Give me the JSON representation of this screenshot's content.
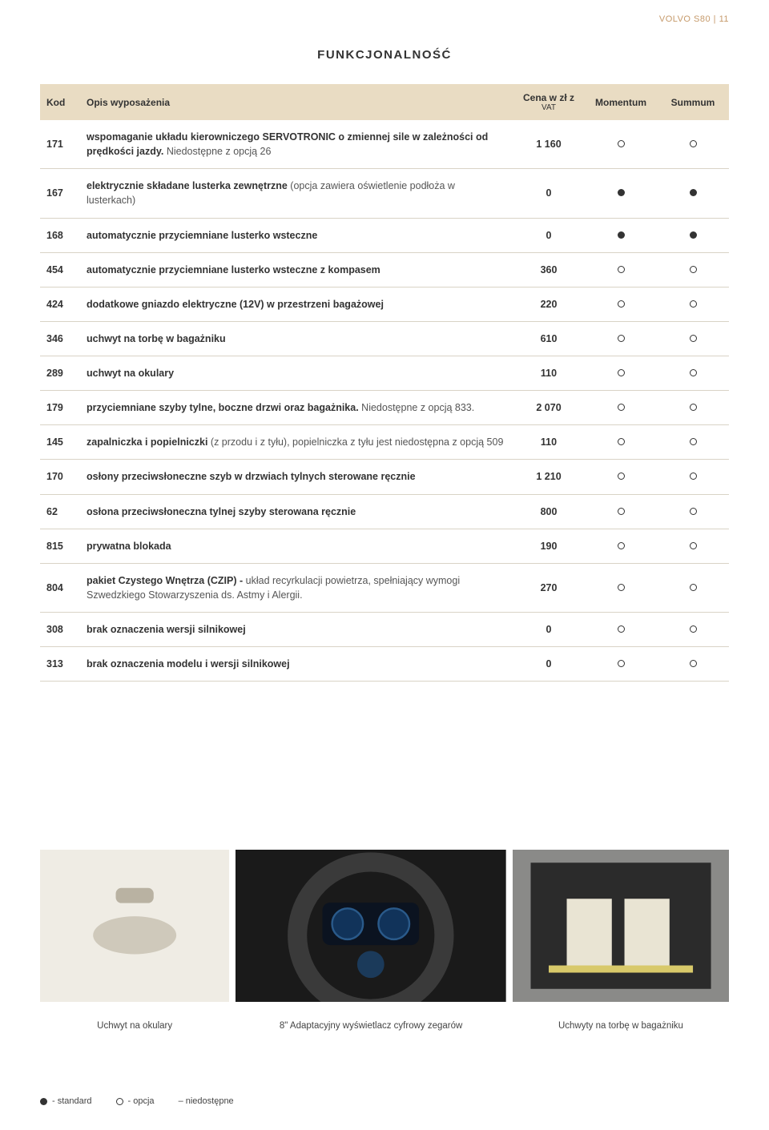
{
  "corner": "VOLVO S80 | 11",
  "section_title": "FUNKCJONALNOŚĆ",
  "table": {
    "headers": {
      "kod": "Kod",
      "opis": "Opis wyposażenia",
      "cena": "Cena w zł z",
      "cena_sub": "VAT",
      "momentum": "Momentum",
      "summum": "Summum"
    },
    "rows": [
      {
        "kod": "171",
        "desc_bold": "wspomaganie układu kierowniczego SERVOTRONIC o zmiennej sile w zależności od prędkości jazdy.",
        "desc_light": " Niedostępne z opcją 26",
        "price": "1 160",
        "m": "open",
        "s": "open"
      },
      {
        "kod": "167",
        "desc_bold": "elektrycznie składane lusterka zewnętrzne ",
        "desc_light": "(opcja zawiera oświetlenie podłoża w lusterkach)",
        "price": "0",
        "m": "filled",
        "s": "filled"
      },
      {
        "kod": "168",
        "desc_bold": "automatycznie przyciemniane lusterko wsteczne",
        "desc_light": "",
        "price": "0",
        "m": "filled",
        "s": "filled"
      },
      {
        "kod": "454",
        "desc_bold": "automatycznie przyciemniane lusterko wsteczne  z kompasem",
        "desc_light": "",
        "price": "360",
        "m": "open",
        "s": "open"
      },
      {
        "kod": "424",
        "desc_bold": "dodatkowe gniazdo elektryczne (12V) w przestrzeni bagażowej",
        "desc_light": "",
        "price": "220",
        "m": "open",
        "s": "open"
      },
      {
        "kod": "346",
        "desc_bold": "uchwyt na torbę w bagażniku",
        "desc_light": "",
        "price": "610",
        "m": "open",
        "s": "open"
      },
      {
        "kod": "289",
        "desc_bold": "uchwyt na okulary",
        "desc_light": "",
        "price": "110",
        "m": "open",
        "s": "open"
      },
      {
        "kod": "179",
        "desc_bold": "przyciemniane szyby tylne, boczne drzwi oraz bagażnika.",
        "desc_light": " Niedostępne z opcją 833.",
        "price": "2 070",
        "m": "open",
        "s": "open"
      },
      {
        "kod": "145",
        "desc_bold": "zapalniczka i popielniczki ",
        "desc_light": "(z przodu i z tyłu), popielniczka z tyłu jest niedostępna z opcją 509",
        "price": "110",
        "m": "open",
        "s": "open"
      },
      {
        "kod": "170",
        "desc_bold": "osłony przeciwsłoneczne szyb w drzwiach tylnych sterowane ręcznie",
        "desc_light": "",
        "price": "1 210",
        "m": "open",
        "s": "open"
      },
      {
        "kod": "62",
        "desc_bold": "osłona przeciwsłoneczna tylnej szyby sterowana ręcznie",
        "desc_light": "",
        "price": "800",
        "m": "open",
        "s": "open"
      },
      {
        "kod": "815",
        "desc_bold": "prywatna blokada",
        "desc_light": "",
        "price": "190",
        "m": "open",
        "s": "open"
      },
      {
        "kod": "804",
        "desc_bold": "pakiet Czystego Wnętrza (CZIP) - ",
        "desc_light": "układ recyrkulacji powietrza, spełniający wymogi Szwedzkiego Stowarzyszenia ds. Astmy i Alergii.",
        "price": "270",
        "m": "open",
        "s": "open"
      },
      {
        "kod": "308",
        "desc_bold": "brak oznaczenia wersji silnikowej",
        "desc_light": "",
        "price": "0",
        "m": "open",
        "s": "open"
      },
      {
        "kod": "313",
        "desc_bold": "brak oznaczenia modelu i wersji silnikowej",
        "desc_light": "",
        "price": "0",
        "m": "open",
        "s": "open"
      }
    ]
  },
  "gallery": {
    "widths": [
      0.28,
      0.4,
      0.32
    ],
    "captions": [
      "Uchwyt na okulary",
      "8\" Adaptacyjny wyświetlacz cyfrowy zegarów",
      "Uchwyty na torbę w bagażniku"
    ]
  },
  "legend": {
    "standard": "- standard",
    "opcja": "- opcja",
    "niedostepne": "– niedostępne"
  },
  "colors": {
    "header_bg": "#e9dcc3",
    "row_border": "#d9d3c6",
    "corner": "#c69a6b"
  }
}
